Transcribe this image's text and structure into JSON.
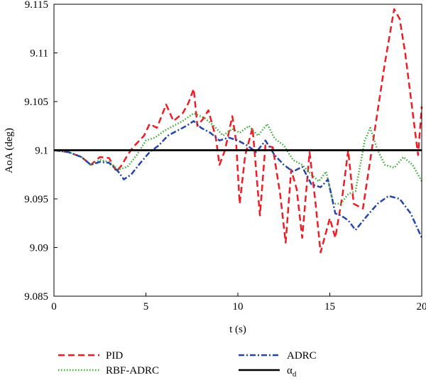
{
  "chart_data": {
    "type": "line",
    "title": "",
    "xlabel": "t (s)",
    "ylabel": "AoA (deg)",
    "xlim": [
      0,
      20
    ],
    "ylim": [
      9.085,
      9.115
    ],
    "x_ticks": [
      0,
      5,
      10,
      15,
      20
    ],
    "x_tick_labels": [
      "0",
      "5",
      "10",
      "15",
      "20"
    ],
    "y_ticks": [
      9.085,
      9.09,
      9.095,
      9.1,
      9.105,
      9.11,
      9.115
    ],
    "y_tick_labels": [
      "9.085",
      "9.09",
      "9.095",
      "9.1",
      "9.105",
      "9.11",
      "9.115"
    ],
    "grid": false,
    "legend_position": "below",
    "series": [
      {
        "name": "PID",
        "color": "#ee1c25",
        "style": "dashed",
        "points": [
          [
            0,
            9.1
          ],
          [
            0.8,
            9.0998
          ],
          [
            1.5,
            9.0993
          ],
          [
            2.0,
            9.0985
          ],
          [
            2.5,
            9.0993
          ],
          [
            3.0,
            9.0992
          ],
          [
            3.4,
            9.0978
          ],
          [
            3.7,
            9.0985
          ],
          [
            4.0,
            9.0995
          ],
          [
            4.3,
            9.1003
          ],
          [
            4.6,
            9.1009
          ],
          [
            4.9,
            9.1015
          ],
          [
            5.2,
            9.1027
          ],
          [
            5.6,
            9.1023
          ],
          [
            6.1,
            9.1047
          ],
          [
            6.5,
            9.103
          ],
          [
            7.0,
            9.1038
          ],
          [
            7.3,
            9.1048
          ],
          [
            7.6,
            9.1063
          ],
          [
            7.8,
            9.1025
          ],
          [
            8.1,
            9.1032
          ],
          [
            8.4,
            9.1041
          ],
          [
            8.8,
            9.1013
          ],
          [
            9.0,
            9.0985
          ],
          [
            9.3,
            9.1
          ],
          [
            9.7,
            9.1035
          ],
          [
            9.9,
            9.101
          ],
          [
            10.1,
            9.0945
          ],
          [
            10.4,
            9.0995
          ],
          [
            10.8,
            9.1023
          ],
          [
            11.2,
            9.0933
          ],
          [
            11.5,
            9.1005
          ],
          [
            11.9,
            9.1003
          ],
          [
            12.3,
            9.0955
          ],
          [
            12.6,
            9.0905
          ],
          [
            12.9,
            9.098
          ],
          [
            13.2,
            9.096
          ],
          [
            13.5,
            9.091
          ],
          [
            13.9,
            9.0998
          ],
          [
            14.2,
            9.095
          ],
          [
            14.5,
            9.0895
          ],
          [
            15.0,
            9.093
          ],
          [
            15.3,
            9.091
          ],
          [
            15.7,
            9.0955
          ],
          [
            16.0,
            9.1
          ],
          [
            16.3,
            9.0945
          ],
          [
            16.8,
            9.094
          ],
          [
            17.2,
            9.099
          ],
          [
            17.6,
            9.104
          ],
          [
            18.0,
            9.109
          ],
          [
            18.5,
            9.1145
          ],
          [
            18.8,
            9.1135
          ],
          [
            19.1,
            9.11
          ],
          [
            19.5,
            9.104
          ],
          [
            19.8,
            9.0995
          ],
          [
            20.0,
            9.1045
          ]
        ]
      },
      {
        "name": "RBF-ADRC",
        "color": "#3aa935",
        "style": "dotted",
        "points": [
          [
            0,
            9.1
          ],
          [
            0.8,
            9.0998
          ],
          [
            1.5,
            9.0993
          ],
          [
            2.0,
            9.0985
          ],
          [
            2.5,
            9.099
          ],
          [
            3.0,
            9.0988
          ],
          [
            3.5,
            9.098
          ],
          [
            4.0,
            9.0983
          ],
          [
            4.5,
            9.0995
          ],
          [
            5.0,
            9.101
          ],
          [
            5.5,
            9.1013
          ],
          [
            6.0,
            9.102
          ],
          [
            6.5,
            9.1025
          ],
          [
            7.0,
            9.103
          ],
          [
            7.6,
            9.1038
          ],
          [
            8.2,
            9.1033
          ],
          [
            8.7,
            9.1025
          ],
          [
            9.2,
            9.1015
          ],
          [
            9.7,
            9.1022
          ],
          [
            10.1,
            9.1018
          ],
          [
            10.6,
            9.1025
          ],
          [
            11.1,
            9.1015
          ],
          [
            11.6,
            9.1027
          ],
          [
            12.0,
            9.1012
          ],
          [
            12.5,
            9.1005
          ],
          [
            13.0,
            9.099
          ],
          [
            13.5,
            9.0985
          ],
          [
            14.0,
            9.0975
          ],
          [
            14.4,
            9.0968
          ],
          [
            14.8,
            9.0978
          ],
          [
            15.2,
            9.0945
          ],
          [
            15.6,
            9.0945
          ],
          [
            16.0,
            9.0955
          ],
          [
            16.4,
            9.0958
          ],
          [
            16.9,
            9.101
          ],
          [
            17.2,
            9.1023
          ],
          [
            17.6,
            9.1
          ],
          [
            18.0,
            9.0985
          ],
          [
            18.5,
            9.0982
          ],
          [
            19.0,
            9.0993
          ],
          [
            19.5,
            9.0985
          ],
          [
            20.0,
            9.0968
          ]
        ]
      },
      {
        "name": "ADRC",
        "color": "#2346a8",
        "style": "dashdot",
        "points": [
          [
            0,
            9.1
          ],
          [
            0.8,
            9.0998
          ],
          [
            1.5,
            9.0993
          ],
          [
            2.0,
            9.0985
          ],
          [
            2.5,
            9.0988
          ],
          [
            3.0,
            9.0987
          ],
          [
            3.5,
            9.0978
          ],
          [
            3.8,
            9.097
          ],
          [
            4.2,
            9.0975
          ],
          [
            4.7,
            9.0987
          ],
          [
            5.2,
            9.0998
          ],
          [
            5.7,
            9.1005
          ],
          [
            6.2,
            9.1015
          ],
          [
            6.7,
            9.102
          ],
          [
            7.2,
            9.1025
          ],
          [
            7.6,
            9.103
          ],
          [
            8.0,
            9.1023
          ],
          [
            8.5,
            9.1018
          ],
          [
            9.0,
            9.101
          ],
          [
            9.5,
            9.1013
          ],
          [
            10.0,
            9.101
          ],
          [
            10.5,
            9.1005
          ],
          [
            11.0,
            9.0998
          ],
          [
            11.5,
            9.101
          ],
          [
            12.0,
            9.0995
          ],
          [
            12.5,
            9.0985
          ],
          [
            13.0,
            9.0978
          ],
          [
            13.5,
            9.0983
          ],
          [
            14.0,
            9.0965
          ],
          [
            14.5,
            9.0962
          ],
          [
            14.9,
            9.097
          ],
          [
            15.3,
            9.0935
          ],
          [
            15.6,
            9.0933
          ],
          [
            16.0,
            9.0928
          ],
          [
            16.4,
            9.0918
          ],
          [
            17.0,
            9.0932
          ],
          [
            17.6,
            9.0945
          ],
          [
            18.2,
            9.0953
          ],
          [
            18.8,
            9.095
          ],
          [
            19.4,
            9.0935
          ],
          [
            20.0,
            9.091
          ]
        ]
      },
      {
        "name": "α_d",
        "color": "#000000",
        "style": "solid",
        "points": [
          [
            0,
            9.1
          ],
          [
            20,
            9.1
          ]
        ]
      }
    ]
  },
  "legend": {
    "items": [
      {
        "label": "PID"
      },
      {
        "label": "RBF-ADRC"
      },
      {
        "label": "ADRC"
      },
      {
        "label": "α",
        "subscript": "d"
      }
    ]
  }
}
